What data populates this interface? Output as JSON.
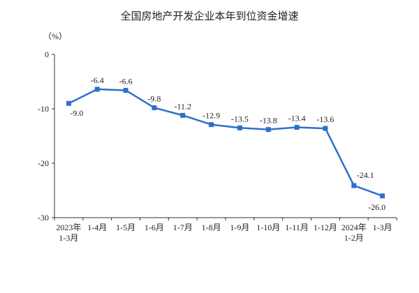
{
  "chart_data": {
    "type": "line",
    "title": "全国房地产开发企业本年到位资金增速",
    "unit_label": "（%）",
    "categories": [
      [
        "2023年",
        "1-3月"
      ],
      [
        "1-4月"
      ],
      [
        "1-5月"
      ],
      [
        "1-6月"
      ],
      [
        "1-7月"
      ],
      [
        "1-8月"
      ],
      [
        "1-9月"
      ],
      [
        "1-10月"
      ],
      [
        "1-11月"
      ],
      [
        "1-12月"
      ],
      [
        "2024年",
        "1-2月"
      ],
      [
        "1-3月"
      ]
    ],
    "series": [
      {
        "values": [
          -9.0,
          -6.4,
          -6.6,
          -9.8,
          -11.2,
          -12.9,
          -13.5,
          -13.8,
          -13.4,
          -13.6,
          -24.1,
          -26.0
        ],
        "labels": [
          "-9.0",
          "-6.4",
          "-6.6",
          "-9.8",
          "-11.2",
          "-12.9",
          "-13.5",
          "-13.8",
          "-13.4",
          "-13.6",
          "-24.1",
          "-26.0"
        ]
      }
    ],
    "y_ticks": [
      "0",
      "-10",
      "-20",
      "-30"
    ],
    "ylim": [
      -30,
      0
    ],
    "grid": false,
    "colors": {
      "line": "#2e6fcb",
      "axis": "#333333",
      "text": "#222222"
    }
  }
}
